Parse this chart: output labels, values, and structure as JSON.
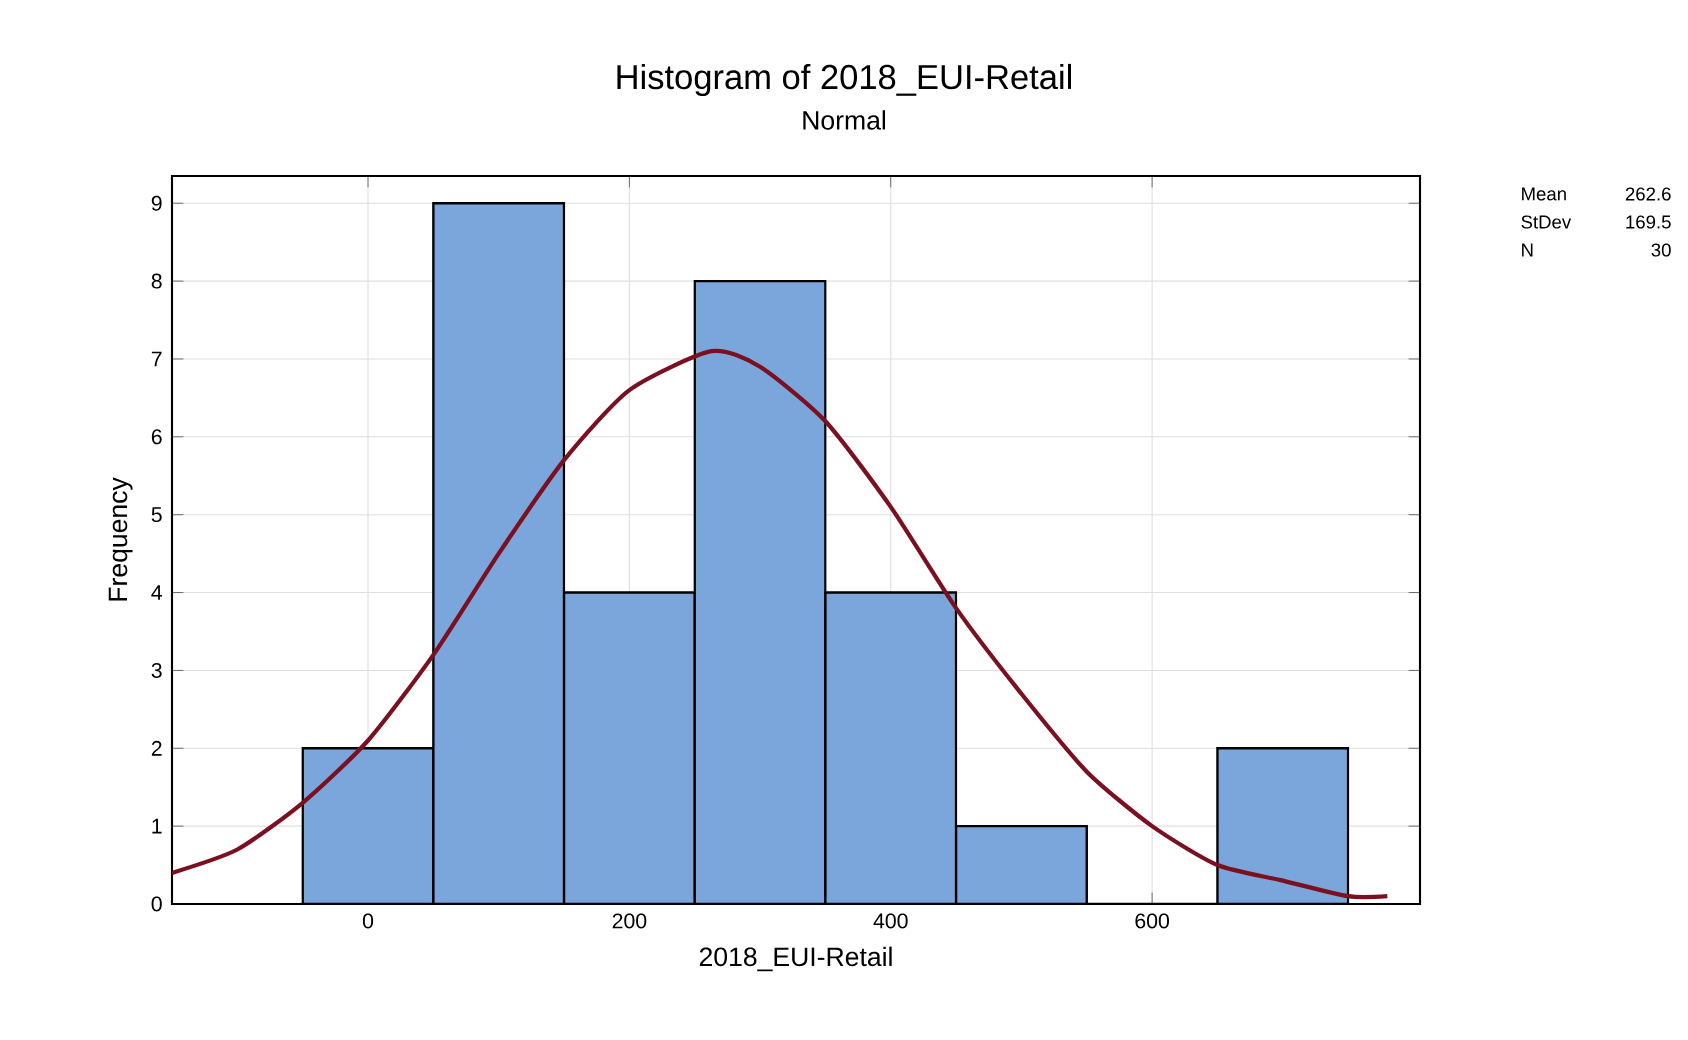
{
  "chart_data": {
    "type": "histogram",
    "title": "Histogram of 2018_EUI-Retail",
    "subtitle": "Normal",
    "xlabel": "2018_EUI-Retail",
    "ylabel": "Frequency",
    "series": [
      {
        "color": "#7ba6dc",
        "bins": [
          -50,
          50,
          150,
          250,
          350,
          450,
          550,
          650,
          750
        ],
        "values": [
          2,
          9,
          4,
          8,
          4,
          1,
          0,
          2
        ]
      },
      {
        "type": "line",
        "color": "#7a1020",
        "x": [
          -150,
          -100,
          -50,
          0,
          50,
          100,
          150,
          200,
          262.6,
          300,
          350,
          400,
          450,
          500,
          550,
          600,
          650,
          700,
          750,
          780
        ],
        "values": [
          0.4,
          0.7,
          1.3,
          2.1,
          3.2,
          4.5,
          5.7,
          6.6,
          7.1,
          6.9,
          6.2,
          5.1,
          3.8,
          2.7,
          1.7,
          1.0,
          0.5,
          0.3,
          0.1,
          0.1
        ]
      }
    ],
    "xlim": [
      -150,
      805
    ],
    "ylim": [
      0,
      9.35
    ],
    "xticks": [
      0,
      200,
      400,
      600
    ],
    "yticks": [
      0,
      1,
      2,
      3,
      4,
      5,
      6,
      7,
      8,
      9
    ],
    "grid": true,
    "annotations": [
      "Mean",
      "262.6",
      "StDev",
      "169.5",
      "N",
      "30"
    ]
  }
}
